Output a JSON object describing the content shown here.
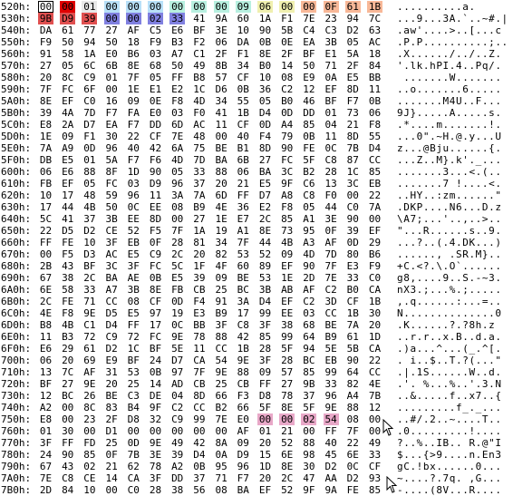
{
  "hex_rows": [
    {
      "addr": "520h:",
      "bytes": [
        "00",
        "00",
        "01",
        "00",
        "00",
        "00",
        "00",
        "00",
        "00",
        "09",
        "06",
        "00",
        "00",
        "0F",
        "61",
        "1B"
      ],
      "ascii": "..........a."
    },
    {
      "addr": "530h:",
      "bytes": [
        "9B",
        "D9",
        "39",
        "00",
        "00",
        "02",
        "33",
        "41",
        "9A",
        "60",
        "1A",
        "F1",
        "7E",
        "23",
        "94",
        "7C"
      ],
      "ascii": "...9...3A.`..~#.|"
    },
    {
      "addr": "540h:",
      "bytes": [
        "DA",
        "61",
        "77",
        "27",
        "AF",
        "C5",
        "E6",
        "BF",
        "3E",
        "10",
        "90",
        "5B",
        "C4",
        "C3",
        "D2",
        "63"
      ],
      "ascii": ".aw'....>..[...c"
    },
    {
      "addr": "550h:",
      "bytes": [
        "F9",
        "50",
        "94",
        "50",
        "18",
        "F9",
        "B3",
        "F2",
        "06",
        "DA",
        "0B",
        "0E",
        "EA",
        "3B",
        "05",
        "AC"
      ],
      "ascii": ".P.P..........;.."
    },
    {
      "addr": "560h:",
      "bytes": [
        "91",
        "58",
        "1A",
        "E0",
        "B6",
        "03",
        "A7",
        "C1",
        "2F",
        "F1",
        "8E",
        "2F",
        "BF",
        "E1",
        "5A",
        "18"
      ],
      "ascii": ".X....../../..Z."
    },
    {
      "addr": "570h:",
      "bytes": [
        "27",
        "05",
        "6C",
        "6B",
        "8E",
        "68",
        "50",
        "49",
        "8B",
        "34",
        "B0",
        "14",
        "50",
        "71",
        "2F",
        "84"
      ],
      "ascii": "'.lk.hPI.4..Pq/."
    },
    {
      "addr": "580h:",
      "bytes": [
        "20",
        "8C",
        "C9",
        "01",
        "7F",
        "05",
        "FF",
        "B8",
        "57",
        "CF",
        "10",
        "08",
        "E9",
        "0A",
        "E5",
        "BB"
      ],
      "ascii": " .......W......."
    },
    {
      "addr": "590h:",
      "bytes": [
        "7F",
        "FC",
        "6F",
        "00",
        "1E",
        "E1",
        "E2",
        "1C",
        "D6",
        "0B",
        "36",
        "C2",
        "12",
        "EF",
        "8D",
        "11"
      ],
      "ascii": "..o.......6....."
    },
    {
      "addr": "5A0h:",
      "bytes": [
        "8E",
        "EF",
        "C0",
        "16",
        "09",
        "0E",
        "F8",
        "4D",
        "34",
        "55",
        "05",
        "B0",
        "46",
        "BF",
        "F7",
        "0B"
      ],
      "ascii": ".......M4U..F..."
    },
    {
      "addr": "5B0h:",
      "bytes": [
        "39",
        "4A",
        "7D",
        "F7",
        "FA",
        "E0",
        "03",
        "F0",
        "41",
        "1B",
        "D4",
        "0D",
        "DD",
        "01",
        "73",
        "06"
      ],
      "ascii": "9J}.....A.....s."
    },
    {
      "addr": "5C0h:",
      "bytes": [
        "E8",
        "2A",
        "D7",
        "EA",
        "F7",
        "DD",
        "6D",
        "AC",
        "11",
        "CF",
        "0D",
        "A4",
        "85",
        "04",
        "21",
        "F8"
      ],
      "ascii": ".*....m.......!."
    },
    {
      "addr": "5D0h:",
      "bytes": [
        "1E",
        "09",
        "F1",
        "30",
        "22",
        "CF",
        "7E",
        "48",
        "00",
        "40",
        "F4",
        "79",
        "0B",
        "11",
        "8D",
        "55"
      ],
      "ascii": "...0\".~H.@.y...U"
    },
    {
      "addr": "5E0h:",
      "bytes": [
        "7A",
        "A9",
        "0D",
        "96",
        "40",
        "42",
        "6A",
        "75",
        "BE",
        "B1",
        "8D",
        "90",
        "FE",
        "0C",
        "7B",
        "D4"
      ],
      "ascii": "z...@Bju......{."
    },
    {
      "addr": "5F0h:",
      "bytes": [
        "DB",
        "E5",
        "01",
        "5A",
        "F7",
        "F6",
        "4D",
        "7D",
        "BA",
        "6B",
        "27",
        "FC",
        "5F",
        "C8",
        "87",
        "CC"
      ],
      "ascii": "...Z..M}.k'._..."
    },
    {
      "addr": "600h:",
      "bytes": [
        "06",
        "E6",
        "88",
        "8F",
        "1D",
        "90",
        "05",
        "33",
        "88",
        "06",
        "BA",
        "3C",
        "B2",
        "28",
        "1C",
        "85"
      ],
      "ascii": ".......3...<.(.."
    },
    {
      "addr": "610h:",
      "bytes": [
        "FB",
        "EF",
        "05",
        "FC",
        "03",
        "D9",
        "96",
        "37",
        "20",
        "21",
        "E5",
        "9F",
        "C6",
        "13",
        "3C",
        "EB"
      ],
      "ascii": ".......7 !....<."
    },
    {
      "addr": "620h:",
      "bytes": [
        "10",
        "17",
        "48",
        "59",
        "96",
        "11",
        "3A",
        "7A",
        "6D",
        "FF",
        "D7",
        "A8",
        "C8",
        "F0",
        "00",
        "22"
      ],
      "ascii": "..HY..:zm......\""
    },
    {
      "addr": "630h:",
      "bytes": [
        "17",
        "44",
        "4B",
        "50",
        "0C",
        "EE",
        "08",
        "B9",
        "4E",
        "36",
        "E2",
        "F8",
        "05",
        "44",
        "C0",
        "7A"
      ],
      "ascii": ".DKP....N6...D.z"
    },
    {
      "addr": "640h:",
      "bytes": [
        "5C",
        "41",
        "37",
        "3B",
        "EE",
        "8D",
        "00",
        "27",
        "1E",
        "E7",
        "2C",
        "85",
        "A1",
        "3E",
        "90",
        "00"
      ],
      "ascii": "\\A7;...'..,..>.."
    },
    {
      "addr": "650h:",
      "bytes": [
        "22",
        "D5",
        "D2",
        "CE",
        "52",
        "F5",
        "7F",
        "1A",
        "19",
        "A1",
        "8E",
        "73",
        "95",
        "0F",
        "39",
        "EF"
      ],
      "ascii": "\"...R......s..9."
    },
    {
      "addr": "660h:",
      "bytes": [
        "FF",
        "FE",
        "10",
        "3F",
        "EB",
        "0F",
        "28",
        "81",
        "34",
        "7F",
        "44",
        "4B",
        "A3",
        "AF",
        "0D",
        "29"
      ],
      "ascii": "...?..(.4.DK...)"
    },
    {
      "addr": "670h:",
      "bytes": [
        "00",
        "F5",
        "D3",
        "AC",
        "E5",
        "C9",
        "2C",
        "20",
        "82",
        "53",
        "52",
        "09",
        "4D",
        "7D",
        "80",
        "B6"
      ],
      "ascii": "......, .SR.M}.."
    },
    {
      "addr": "680h:",
      "bytes": [
        "2B",
        "43",
        "BF",
        "3C",
        "3F",
        "FC",
        "5C",
        "1F",
        "4F",
        "60",
        "89",
        "EF",
        "90",
        "7F",
        "E3",
        "F9"
      ],
      "ascii": "+C.<?.\\.O`......"
    },
    {
      "addr": "690h:",
      "bytes": [
        "67",
        "38",
        "2C",
        "BA",
        "AE",
        "0B",
        "E5",
        "39",
        "09",
        "BE",
        "53",
        "1E",
        "2D",
        "7E",
        "33",
        "C0"
      ],
      "ascii": "g8,....9..S.-~3."
    },
    {
      "addr": "6A0h:",
      "bytes": [
        "6E",
        "58",
        "33",
        "A7",
        "3B",
        "8E",
        "FB",
        "CB",
        "25",
        "BC",
        "3B",
        "AB",
        "AF",
        "C2",
        "B0",
        "CA"
      ],
      "ascii": "nX3.;...%.;....."
    },
    {
      "addr": "6B0h:",
      "bytes": [
        "2C",
        "FE",
        "71",
        "CC",
        "08",
        "CF",
        "0D",
        "F4",
        "91",
        "3A",
        "D4",
        "EF",
        "C2",
        "3D",
        "CF",
        "1B"
      ],
      "ascii": ",.q......:...=.."
    },
    {
      "addr": "6C0h:",
      "bytes": [
        "4E",
        "F8",
        "9E",
        "D5",
        "E5",
        "97",
        "19",
        "E3",
        "B9",
        "17",
        "99",
        "EE",
        "03",
        "CC",
        "1B",
        "30"
      ],
      "ascii": "N..............0"
    },
    {
      "addr": "6D0h:",
      "bytes": [
        "B8",
        "4B",
        "C1",
        "D4",
        "FF",
        "17",
        "0C",
        "BB",
        "3F",
        "C8",
        "3F",
        "38",
        "68",
        "BE",
        "7A",
        "20"
      ],
      "ascii": ".K......?.?8h.z "
    },
    {
      "addr": "6E0h:",
      "bytes": [
        "11",
        "B3",
        "72",
        "C9",
        "72",
        "FC",
        "9E",
        "78",
        "88",
        "42",
        "85",
        "99",
        "64",
        "B9",
        "61",
        "1D"
      ],
      "ascii": "..r.r..x.B..d.a."
    },
    {
      "addr": "6F0h:",
      "bytes": [
        "E6",
        "29",
        "61",
        "D2",
        "1C",
        "BF",
        "5E",
        "11",
        "CC",
        "1B",
        "28",
        "5F",
        "94",
        "5E",
        "5B",
        "CA"
      ],
      "ascii": ".)a...^...(_.^[."
    },
    {
      "addr": "700h:",
      "bytes": [
        "06",
        "20",
        "69",
        "E9",
        "BF",
        "24",
        "D7",
        "CA",
        "54",
        "9E",
        "3F",
        "28",
        "BC",
        "EB",
        "90",
        "22"
      ],
      "ascii": ". i..$..T.?(...\""
    },
    {
      "addr": "710h:",
      "bytes": [
        "13",
        "7C",
        "AF",
        "31",
        "53",
        "0B",
        "97",
        "7F",
        "9E",
        "88",
        "09",
        "57",
        "85",
        "99",
        "64",
        "CC"
      ],
      "ascii": ".|.1S......W..d."
    },
    {
      "addr": "720h:",
      "bytes": [
        "BF",
        "27",
        "9E",
        "20",
        "25",
        "14",
        "AD",
        "CB",
        "25",
        "CB",
        "FF",
        "27",
        "9B",
        "33",
        "82",
        "4E"
      ],
      "ascii": ".'. %...%..'.3.N"
    },
    {
      "addr": "730h:",
      "bytes": [
        "12",
        "BC",
        "26",
        "BE",
        "C3",
        "DE",
        "04",
        "8D",
        "66",
        "F3",
        "D8",
        "78",
        "37",
        "96",
        "A4",
        "7B"
      ],
      "ascii": "..&.....f..x7..{"
    },
    {
      "addr": "740h:",
      "bytes": [
        "A2",
        "00",
        "8C",
        "83",
        "B4",
        "9F",
        "C2",
        "CC",
        "B2",
        "66",
        "5F",
        "8E",
        "5F",
        "9E",
        "88",
        "12"
      ],
      "ascii": ".........f_._..."
    },
    {
      "addr": "750h:",
      "bytes": [
        "E8",
        "00",
        "23",
        "2F",
        "D8",
        "32",
        "C9",
        "99",
        "7E",
        "E0",
        "00",
        "00",
        "02",
        "54",
        "08",
        "00"
      ],
      "ascii": "..#/.2..~....T.."
    },
    {
      "addr": "760h:",
      "bytes": [
        "01",
        "30",
        "00",
        "D1",
        "00",
        "00",
        "00",
        "00",
        "00",
        "AF",
        "01",
        "21",
        "00",
        "FF",
        "7F",
        "00"
      ],
      "ascii": ".0.........!...."
    },
    {
      "addr": "770h:",
      "bytes": [
        "3F",
        "FF",
        "FD",
        "25",
        "0D",
        "9E",
        "49",
        "42",
        "8A",
        "09",
        "20",
        "52",
        "88",
        "40",
        "22",
        "49"
      ],
      "ascii": "?..%..IB.. R.@\"I"
    },
    {
      "addr": "780h:",
      "bytes": [
        "24",
        "90",
        "85",
        "0F",
        "7B",
        "3E",
        "39",
        "D4",
        "0A",
        "D9",
        "15",
        "6E",
        "98",
        "45",
        "6E",
        "33"
      ],
      "ascii": "$...{>9....n.En3"
    },
    {
      "addr": "790h:",
      "bytes": [
        "67",
        "43",
        "02",
        "21",
        "62",
        "78",
        "A2",
        "0B",
        "95",
        "96",
        "1D",
        "8E",
        "30",
        "D2",
        "0C",
        "CF"
      ],
      "ascii": "gC.!bx......0..."
    },
    {
      "addr": "7A0h:",
      "bytes": [
        "7E",
        "C8",
        "CE",
        "14",
        "CA",
        "3F",
        "DD",
        "37",
        "71",
        "F7",
        "20",
        "2C",
        "47",
        "AA",
        "D2",
        "93"
      ],
      "ascii": "~....?.7q. ,G..."
    },
    {
      "addr": "7B0h:",
      "bytes": [
        "2D",
        "84",
        "10",
        "00",
        "C0",
        "28",
        "38",
        "56",
        "08",
        "BA",
        "EF",
        "52",
        "9F",
        "9A",
        "FE",
        "85"
      ],
      "ascii": "-....(8V...R...."
    }
  ],
  "highlights": {
    "row_520": [
      {
        "index": 0,
        "color": "#ffffff",
        "border": "#000000"
      },
      {
        "index": 1,
        "color": "#e00000"
      },
      {
        "index": 2,
        "color": "#e8e8e8"
      },
      {
        "index": 3,
        "color": "#b8e0f8"
      },
      {
        "index": 4,
        "color": "#b8e0f8"
      },
      {
        "index": 5,
        "color": "#b8e0f8"
      },
      {
        "index": 6,
        "color": "#b8f0e0"
      },
      {
        "index": 7,
        "color": "#b8f0e0"
      },
      {
        "index": 8,
        "color": "#b8f0e0"
      },
      {
        "index": 9,
        "color": "#b8f0e0"
      },
      {
        "index": 10,
        "color": "#f0f0b0"
      },
      {
        "index": 11,
        "color": "#f0f0b0"
      },
      {
        "index": 12,
        "color": "#f8b898"
      },
      {
        "index": 13,
        "color": "#f8b898"
      },
      {
        "index": 14,
        "color": "#f8b898"
      },
      {
        "index": 15,
        "color": "#f8b898"
      }
    ],
    "row_530": [
      {
        "index": 0,
        "color": "#e05050"
      },
      {
        "index": 1,
        "color": "#e05050"
      },
      {
        "index": 2,
        "color": "#e05050"
      },
      {
        "index": 3,
        "color": "#8080e0"
      },
      {
        "index": 4,
        "color": "#8080e0"
      },
      {
        "index": 5,
        "color": "#8080e0"
      },
      {
        "index": 6,
        "color": "#8080e0"
      }
    ],
    "row_750": [
      {
        "index": 10,
        "color": "#e8a8c8"
      },
      {
        "index": 11,
        "color": "#e8a8c8"
      },
      {
        "index": 12,
        "color": "#e8a8c8"
      },
      {
        "index": 13,
        "color": "#e8a8c8"
      }
    ]
  }
}
